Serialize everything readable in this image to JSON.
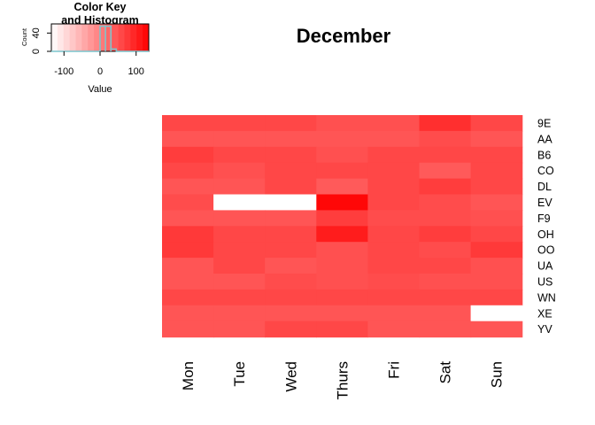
{
  "chart_data": {
    "type": "heatmap",
    "title": "December",
    "columns": [
      "Mon",
      "Tue",
      "Wed",
      "Thurs",
      "Fri",
      "Sat",
      "Sun"
    ],
    "rows": [
      "9E",
      "AA",
      "B6",
      "CO",
      "DL",
      "EV",
      "F9",
      "OH",
      "OO",
      "UA",
      "US",
      "WN",
      "XE",
      "YV"
    ],
    "values": [
      [
        60,
        60,
        60,
        50,
        50,
        85,
        60
      ],
      [
        45,
        45,
        45,
        45,
        45,
        55,
        45
      ],
      [
        70,
        60,
        60,
        50,
        60,
        60,
        60
      ],
      [
        60,
        50,
        60,
        60,
        60,
        40,
        60
      ],
      [
        45,
        45,
        60,
        40,
        60,
        70,
        60
      ],
      [
        55,
        null,
        null,
        128,
        60,
        55,
        45
      ],
      [
        45,
        45,
        45,
        70,
        55,
        55,
        50
      ],
      [
        75,
        60,
        60,
        105,
        60,
        70,
        60
      ],
      [
        75,
        60,
        60,
        50,
        60,
        55,
        75
      ],
      [
        45,
        60,
        45,
        50,
        60,
        60,
        50
      ],
      [
        45,
        45,
        55,
        50,
        55,
        50,
        50
      ],
      [
        60,
        60,
        60,
        60,
        60,
        60,
        60
      ],
      [
        45,
        45,
        45,
        45,
        45,
        45,
        null
      ],
      [
        45,
        45,
        60,
        60,
        45,
        45,
        45
      ]
    ],
    "color_scale": {
      "min": -135,
      "max": 135,
      "low": "#ffffff",
      "high": "#ff0000"
    },
    "color_key": {
      "title_line1": "Color Key",
      "title_line2": "and Histogram",
      "xlabel": "Value",
      "ylabel": "Count",
      "x_ticks": [
        "-100",
        "0",
        "100"
      ],
      "x_tick_values": [
        -100,
        0,
        100
      ],
      "y_ticks": [
        "0",
        "40"
      ],
      "y_tick_values": [
        0,
        40
      ],
      "ylim": [
        0,
        60
      ],
      "histogram": [
        {
          "from": 0,
          "to": 15,
          "count": 55
        },
        {
          "from": 15,
          "to": 30,
          "count": 55
        },
        {
          "from": 30,
          "to": 45,
          "count": 5
        },
        {
          "from": 45,
          "to": 60,
          "count": 0
        }
      ],
      "histogram_color": "#7ac5cd"
    }
  }
}
